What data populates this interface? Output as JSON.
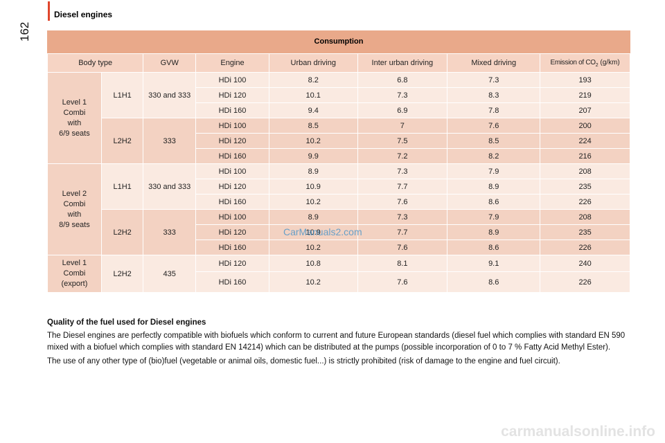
{
  "page": {
    "number": "162",
    "section_title": "Diesel engines"
  },
  "table": {
    "title": "Consumption",
    "columns": {
      "body_type": "Body type",
      "gvw": "GVW",
      "engine": "Engine",
      "urban": "Urban driving",
      "inter_urban": "Inter urban driving",
      "mixed": "Mixed driving",
      "emission": "Emission of CO",
      "emission_sub": "2",
      "emission_unit": " (g/km)"
    },
    "groups": [
      {
        "body_type": [
          "Level 1",
          "Combi",
          "with",
          "6/9 seats"
        ],
        "subgroups": [
          {
            "model": "L1H1",
            "gvw": "330 and 333",
            "rows": [
              {
                "engine": "HDi 100",
                "urban": "8.2",
                "inter": "6.8",
                "mixed": "7.3",
                "co2": "193"
              },
              {
                "engine": "HDi 120",
                "urban": "10.1",
                "inter": "7.3",
                "mixed": "8.3",
                "co2": "219"
              },
              {
                "engine": "HDi 160",
                "urban": "9.4",
                "inter": "6.9",
                "mixed": "7.8",
                "co2": "207"
              }
            ]
          },
          {
            "model": "L2H2",
            "gvw": "333",
            "rows": [
              {
                "engine": "HDi 100",
                "urban": "8.5",
                "inter": "7",
                "mixed": "7.6",
                "co2": "200"
              },
              {
                "engine": "HDi 120",
                "urban": "10.2",
                "inter": "7.5",
                "mixed": "8.5",
                "co2": "224"
              },
              {
                "engine": "HDi 160",
                "urban": "9.9",
                "inter": "7.2",
                "mixed": "8.2",
                "co2": "216"
              }
            ]
          }
        ]
      },
      {
        "body_type": [
          "Level 2",
          "Combi",
          "with",
          "8/9 seats"
        ],
        "subgroups": [
          {
            "model": "L1H1",
            "gvw": "330 and 333",
            "rows": [
              {
                "engine": "HDi 100",
                "urban": "8.9",
                "inter": "7.3",
                "mixed": "7.9",
                "co2": "208"
              },
              {
                "engine": "HDi 120",
                "urban": "10.9",
                "inter": "7.7",
                "mixed": "8.9",
                "co2": "235"
              },
              {
                "engine": "HDi 160",
                "urban": "10.2",
                "inter": "7.6",
                "mixed": "8.6",
                "co2": "226"
              }
            ]
          },
          {
            "model": "L2H2",
            "gvw": "333",
            "rows": [
              {
                "engine": "HDi 100",
                "urban": "8.9",
                "inter": "7.3",
                "mixed": "7.9",
                "co2": "208"
              },
              {
                "engine": "HDi 120",
                "urban": "10.9",
                "inter": "7.7",
                "mixed": "8.9",
                "co2": "235"
              },
              {
                "engine": "HDi 160",
                "urban": "10.2",
                "inter": "7.6",
                "mixed": "8.6",
                "co2": "226"
              }
            ]
          }
        ]
      },
      {
        "body_type": [
          "Level 1",
          "Combi",
          "(export)"
        ],
        "subgroups": [
          {
            "model": "L2H2",
            "gvw": "435",
            "rows": [
              {
                "engine": "HDi 120",
                "urban": "10.8",
                "inter": "8.1",
                "mixed": "9.1",
                "co2": "240"
              },
              {
                "engine": "HDi 160",
                "urban": "10.2",
                "inter": "7.6",
                "mixed": "8.6",
                "co2": "226"
              }
            ]
          }
        ]
      }
    ]
  },
  "watermark": "CarManuals2.com",
  "notes": {
    "title": "Quality of the fuel used for Diesel engines",
    "paragraphs": [
      "The Diesel engines are perfectly compatible with biofuels which conform to current and future European standards (diesel fuel which complies with standard EN 590 mixed with a biofuel which complies with standard EN 14214) which can be distributed at the pumps (possible incorporation of 0 to 7 % Fatty Acid Methyl Ester).",
      "The use of any other type of (bio)fuel (vegetable or animal oils, domestic fuel...) is strictly prohibited (risk of damage to the engine and fuel circuit)."
    ]
  },
  "footer_watermark": "carmanualsonline.info"
}
